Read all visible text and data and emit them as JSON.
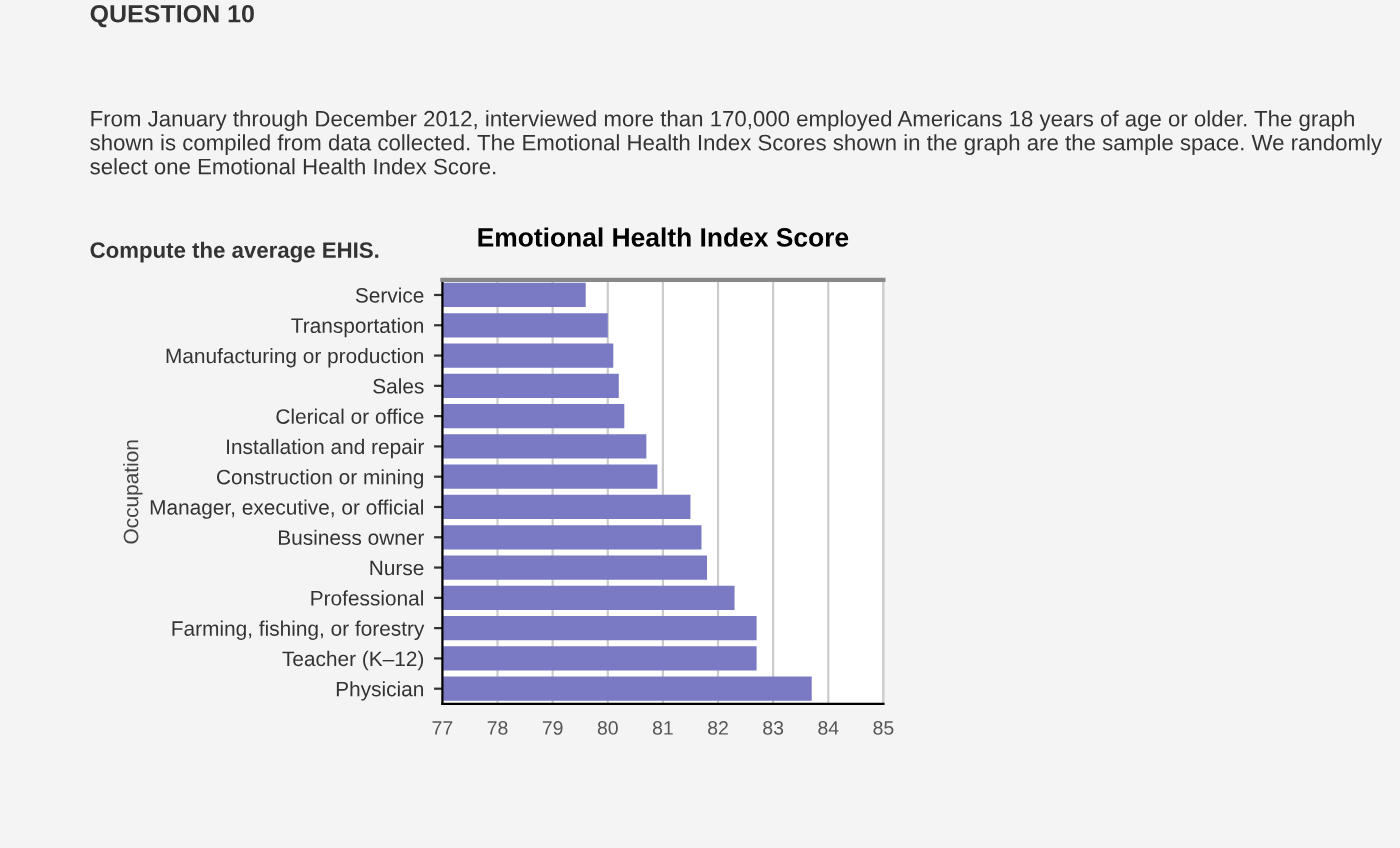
{
  "chart_data": {
    "type": "bar",
    "orientation": "horizontal",
    "title": "Emotional Health Index Score",
    "ylabel": "Occupation",
    "categories": [
      "Service",
      "Transportation",
      "Manufacturing or production",
      "Sales",
      "Clerical or office",
      "Installation and repair",
      "Construction or mining",
      "Manager, executive, or official",
      "Business owner",
      "Nurse",
      "Professional",
      "Farming, fishing, or forestry",
      "Teacher (K–12)",
      "Physician"
    ],
    "values": [
      79.6,
      80.0,
      80.1,
      80.2,
      80.3,
      80.7,
      80.9,
      81.5,
      81.7,
      81.8,
      82.3,
      82.7,
      82.7,
      83.7
    ],
    "color": "#7a7ac4",
    "xlim": [
      77,
      85
    ],
    "xticks": [
      77,
      78,
      79,
      80,
      81,
      82,
      83,
      84,
      85
    ],
    "grid": "x",
    "annotations": [
      "QUESTION 10",
      "From January through December 2012, interviewed more than 170,000 employed Americans 18 years of age or older. The graph shown is compiled from data collected. The Emotional Health Index Scores shown in the graph are the sample space. We randomly select one Emotional Health Index Score.",
      "Compute the average EHIS."
    ]
  }
}
